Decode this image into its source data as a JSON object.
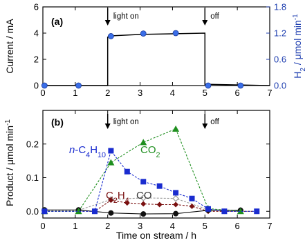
{
  "colors": {
    "current": "#000000",
    "h2": "#3a6ee8",
    "h2_axis": "#1f3fb0",
    "c4h10": "#1a2ccf",
    "co2": "#1f8f1f",
    "c2h4": "#7a1010",
    "co": "#9a9a9a",
    "black_series": "#111111"
  },
  "chart_data": [
    {
      "panel": "(a)",
      "type": "line",
      "xlabel": "",
      "ylabel_left": "Current / mA",
      "ylabel_right": "H2 / μmol min-1",
      "xlim": [
        0,
        7
      ],
      "ylim_left": [
        0,
        6
      ],
      "ylim_right": [
        0,
        1.8
      ],
      "xticks": [
        0,
        1,
        2,
        3,
        4,
        5,
        6,
        7
      ],
      "yticks_left": [
        0,
        2,
        4,
        6
      ],
      "yticks_right": [
        0.0,
        0.6,
        1.2,
        1.8
      ],
      "annotations": [
        {
          "text": "light on",
          "x": 2.0
        },
        {
          "text": "off",
          "x": 5.0
        }
      ],
      "series": [
        {
          "key": "current",
          "axis": "left",
          "style": "step-line",
          "x": [
            0,
            2.0,
            2.0,
            2.2,
            3.0,
            4.0,
            5.0,
            5.0,
            7.0
          ],
          "y": [
            0.0,
            0.0,
            3.7,
            3.8,
            3.9,
            3.95,
            4.0,
            0.1,
            0.0
          ]
        },
        {
          "key": "h2",
          "axis": "right",
          "style": "markers",
          "x": [
            0.05,
            1.1,
            2.1,
            3.1,
            4.1,
            5.1,
            6.1
          ],
          "y": [
            0.0,
            0.0,
            1.13,
            1.19,
            1.2,
            0.0,
            0.0
          ]
        }
      ]
    },
    {
      "panel": "(b)",
      "type": "line",
      "xlabel": "Time on stream / h",
      "ylabel": "Product / μmol min-1",
      "xlim": [
        0,
        7
      ],
      "ylim": [
        -0.02,
        0.3
      ],
      "xticks": [
        0,
        1,
        2,
        3,
        4,
        5,
        6,
        7
      ],
      "yticks": [
        0.0,
        0.1,
        0.2
      ],
      "annotations": [
        {
          "text": "light on",
          "x": 2.0
        },
        {
          "text": "off",
          "x": 5.0
        }
      ],
      "labels": {
        "c4h10": "n-C4H10",
        "co2": "CO2",
        "c2h4": "C2H4",
        "co": "CO"
      },
      "series": [
        {
          "key": "c4h10",
          "marker": "square",
          "x": [
            0.05,
            1.6,
            2.1,
            2.6,
            3.1,
            3.6,
            4.1,
            4.6,
            5.1,
            5.6,
            6.6
          ],
          "y": [
            0.0,
            0.0,
            0.18,
            0.118,
            0.088,
            0.075,
            0.055,
            0.038,
            0.007,
            0.0,
            0.0
          ]
        },
        {
          "key": "co2",
          "marker": "triangle",
          "x": [
            0.05,
            1.1,
            2.1,
            3.1,
            4.1,
            5.1,
            6.1
          ],
          "y": [
            0.0,
            0.0,
            0.145,
            0.205,
            0.245,
            0.008,
            0.0
          ]
        },
        {
          "key": "c2h4",
          "marker": "diamond",
          "x": [
            0.05,
            1.6,
            2.1,
            2.6,
            3.1,
            3.6,
            4.1,
            4.6,
            5.1,
            5.6,
            6.6
          ],
          "y": [
            0.0,
            0.0,
            0.033,
            0.025,
            0.022,
            0.02,
            0.02,
            0.015,
            0.0,
            0.0,
            0.0
          ]
        },
        {
          "key": "co",
          "marker": "open-diamond",
          "x": [
            0.05,
            1.1,
            2.1,
            3.1,
            4.1,
            5.1,
            6.1
          ],
          "y": [
            0.003,
            0.003,
            0.035,
            0.04,
            0.038,
            0.005,
            0.003
          ]
        },
        {
          "key": "black_series",
          "marker": "circle",
          "x": [
            0.05,
            1.1,
            2.1,
            3.1,
            4.1,
            5.1,
            6.1
          ],
          "y": [
            0.004,
            0.004,
            -0.005,
            -0.008,
            -0.007,
            0.003,
            0.003
          ]
        }
      ]
    }
  ]
}
